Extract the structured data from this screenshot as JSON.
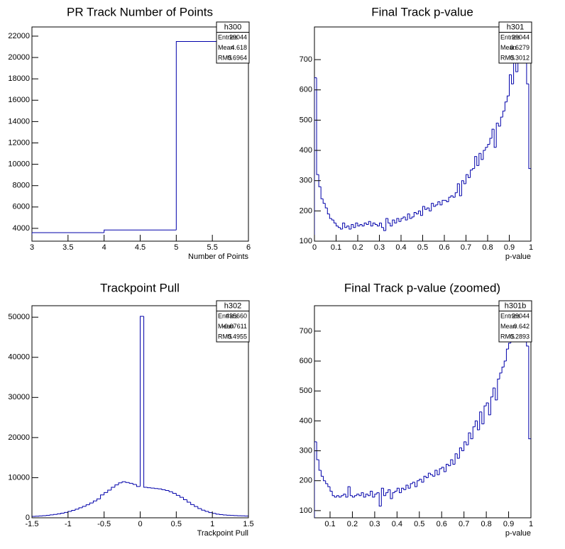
{
  "chart_data": [
    {
      "type": "histogram",
      "title": "PR Track Number of Points",
      "xlabel": "Number of Points",
      "color": "#0000aa",
      "bins": [
        3,
        4,
        5,
        6
      ],
      "values": [
        3600,
        3850,
        21500
      ],
      "xlim": [
        3,
        6
      ],
      "ylim": [
        2800,
        22860
      ],
      "xticks": [
        3,
        3.5,
        4,
        4.5,
        5,
        5.5,
        6
      ],
      "yticks": [
        4000,
        6000,
        8000,
        10000,
        12000,
        14000,
        16000,
        18000,
        20000,
        22000
      ],
      "stats": {
        "name": "h300",
        "rows": [
          {
            "label": "Entries",
            "value": 29044
          },
          {
            "label": "Mean",
            "value": 4.618
          },
          {
            "label": "RMS",
            "value": 0.6964
          }
        ]
      }
    },
    {
      "type": "histogram",
      "title": "Final Track p-value",
      "xlabel": "p-value",
      "color": "#0000aa",
      "bins": [
        0,
        0.01,
        0.02,
        0.03,
        0.04,
        0.05,
        0.06,
        0.07,
        0.08,
        0.09,
        0.1,
        0.11,
        0.12,
        0.13,
        0.14,
        0.15,
        0.16,
        0.17,
        0.18,
        0.19,
        0.2,
        0.21,
        0.22,
        0.23,
        0.24,
        0.25,
        0.26,
        0.27,
        0.28,
        0.29,
        0.3,
        0.31,
        0.32,
        0.33,
        0.34,
        0.35,
        0.36,
        0.37,
        0.38,
        0.39,
        0.4,
        0.41,
        0.42,
        0.43,
        0.44,
        0.45,
        0.46,
        0.47,
        0.48,
        0.49,
        0.5,
        0.51,
        0.52,
        0.53,
        0.54,
        0.55,
        0.56,
        0.57,
        0.58,
        0.59,
        0.6,
        0.61,
        0.62,
        0.63,
        0.64,
        0.65,
        0.66,
        0.67,
        0.68,
        0.69,
        0.7,
        0.71,
        0.72,
        0.73,
        0.74,
        0.75,
        0.76,
        0.77,
        0.78,
        0.79,
        0.8,
        0.81,
        0.82,
        0.83,
        0.84,
        0.85,
        0.86,
        0.87,
        0.88,
        0.89,
        0.9,
        0.91,
        0.92,
        0.93,
        0.94,
        0.95,
        0.96,
        0.97,
        0.98,
        0.99,
        1
      ],
      "values": [
        640,
        320,
        280,
        240,
        225,
        210,
        190,
        175,
        170,
        160,
        150,
        145,
        140,
        160,
        145,
        150,
        140,
        155,
        145,
        160,
        150,
        155,
        150,
        160,
        155,
        165,
        150,
        160,
        155,
        150,
        160,
        145,
        135,
        175,
        160,
        150,
        170,
        160,
        175,
        165,
        175,
        180,
        170,
        190,
        175,
        180,
        195,
        190,
        200,
        185,
        215,
        205,
        210,
        200,
        225,
        215,
        220,
        230,
        220,
        235,
        235,
        230,
        245,
        250,
        245,
        260,
        290,
        250,
        300,
        290,
        320,
        310,
        335,
        340,
        380,
        350,
        390,
        370,
        400,
        410,
        420,
        440,
        470,
        410,
        490,
        480,
        510,
        530,
        560,
        580,
        650,
        620,
        690,
        660,
        710,
        760,
        800,
        720,
        620,
        340
      ],
      "xlim": [
        0,
        1
      ],
      "ylim": [
        100,
        808
      ],
      "xticks": [
        0,
        0.1,
        0.2,
        0.3,
        0.4,
        0.5,
        0.6,
        0.7,
        0.8,
        0.9,
        1
      ],
      "yticks": [
        100,
        200,
        300,
        400,
        500,
        600,
        700
      ],
      "stats": {
        "name": "h301",
        "rows": [
          {
            "label": "Entries",
            "value": 29044
          },
          {
            "label": "Mean",
            "value": 0.6279
          },
          {
            "label": "RMS",
            "value": 0.3012
          }
        ]
      }
    },
    {
      "type": "histogram",
      "title": "Trackpoint Pull",
      "xlabel": "Trackpoint Pull",
      "color": "#0000aa",
      "bins": [
        -1.5,
        -1.45,
        -1.4,
        -1.35,
        -1.3,
        -1.25,
        -1.2,
        -1.15,
        -1.1,
        -1.05,
        -1,
        -0.95,
        -0.9,
        -0.85,
        -0.8,
        -0.75,
        -0.7,
        -0.65,
        -0.6,
        -0.55,
        -0.5,
        -0.45,
        -0.4,
        -0.35,
        -0.3,
        -0.25,
        -0.2,
        -0.15,
        -0.1,
        -0.05,
        0,
        0.05,
        0.1,
        0.15,
        0.2,
        0.25,
        0.3,
        0.35,
        0.4,
        0.45,
        0.5,
        0.55,
        0.6,
        0.65,
        0.7,
        0.75,
        0.8,
        0.85,
        0.9,
        0.95,
        1,
        1.05,
        1.1,
        1.15,
        1.2,
        1.25,
        1.3,
        1.35,
        1.4,
        1.45,
        1.5
      ],
      "values": [
        350,
        400,
        460,
        530,
        620,
        720,
        840,
        980,
        1150,
        1350,
        1600,
        1850,
        2150,
        2500,
        2850,
        3250,
        3700,
        4200,
        4700,
        5700,
        6300,
        6900,
        7600,
        8200,
        8700,
        9000,
        8800,
        8600,
        8300,
        7800,
        50200,
        7600,
        7500,
        7400,
        7300,
        7200,
        7000,
        6800,
        6500,
        6100,
        5600,
        5100,
        4500,
        3900,
        3300,
        2800,
        2300,
        1900,
        1600,
        1300,
        1100,
        900,
        800,
        700,
        650,
        600,
        550,
        500,
        480,
        450
      ],
      "xlim": [
        -1.5,
        1.5
      ],
      "ylim": [
        0,
        52860
      ],
      "xticks": [
        -1.5,
        -1,
        -0.5,
        0,
        0.5,
        1,
        1.5
      ],
      "yticks": [
        0,
        10000,
        20000,
        30000,
        40000,
        50000
      ],
      "stats": {
        "name": "h302",
        "rows": [
          {
            "label": "Entries",
            "value": 435660
          },
          {
            "label": "Mean",
            "value": -0.07611
          },
          {
            "label": "RMS",
            "value": 0.4955
          }
        ]
      }
    },
    {
      "type": "histogram",
      "title": "Final Track p-value (zoomed)",
      "xlabel": "p-value",
      "color": "#0000aa",
      "bins": [
        0.03,
        0.04,
        0.05,
        0.06,
        0.07,
        0.08,
        0.09,
        0.1,
        0.11,
        0.12,
        0.13,
        0.14,
        0.15,
        0.16,
        0.17,
        0.18,
        0.19,
        0.2,
        0.21,
        0.22,
        0.23,
        0.24,
        0.25,
        0.26,
        0.27,
        0.28,
        0.29,
        0.3,
        0.31,
        0.32,
        0.33,
        0.34,
        0.35,
        0.36,
        0.37,
        0.38,
        0.39,
        0.4,
        0.41,
        0.42,
        0.43,
        0.44,
        0.45,
        0.46,
        0.47,
        0.48,
        0.49,
        0.5,
        0.51,
        0.52,
        0.53,
        0.54,
        0.55,
        0.56,
        0.57,
        0.58,
        0.59,
        0.6,
        0.61,
        0.62,
        0.63,
        0.64,
        0.65,
        0.66,
        0.67,
        0.68,
        0.69,
        0.7,
        0.71,
        0.72,
        0.73,
        0.74,
        0.75,
        0.76,
        0.77,
        0.78,
        0.79,
        0.8,
        0.81,
        0.82,
        0.83,
        0.84,
        0.85,
        0.86,
        0.87,
        0.88,
        0.89,
        0.9,
        0.91,
        0.92,
        0.93,
        0.94,
        0.95,
        0.96,
        0.97,
        0.98,
        0.99,
        1
      ],
      "values": [
        330,
        270,
        235,
        215,
        200,
        190,
        180,
        165,
        150,
        145,
        150,
        145,
        150,
        155,
        145,
        180,
        150,
        145,
        150,
        155,
        150,
        160,
        145,
        155,
        150,
        165,
        145,
        155,
        160,
        115,
        175,
        150,
        160,
        170,
        140,
        160,
        165,
        175,
        160,
        175,
        170,
        185,
        175,
        190,
        195,
        180,
        200,
        205,
        195,
        215,
        210,
        225,
        220,
        215,
        235,
        220,
        240,
        245,
        230,
        255,
        250,
        270,
        255,
        290,
        275,
        310,
        300,
        330,
        320,
        360,
        340,
        380,
        400,
        370,
        430,
        390,
        450,
        460,
        420,
        480,
        510,
        470,
        540,
        560,
        580,
        600,
        640,
        660,
        700,
        680,
        740,
        770,
        780,
        720,
        790,
        650,
        340
      ],
      "xlim": [
        0.03,
        1
      ],
      "ylim": [
        76,
        785
      ],
      "xticks": [
        0.1,
        0.2,
        0.3,
        0.4,
        0.5,
        0.6,
        0.7,
        0.8,
        0.9,
        1
      ],
      "yticks": [
        100,
        200,
        300,
        400,
        500,
        600,
        700
      ],
      "stats": {
        "name": "h301b",
        "rows": [
          {
            "label": "Entries",
            "value": 29044
          },
          {
            "label": "Mean",
            "value": 0.642
          },
          {
            "label": "RMS",
            "value": 0.2893
          }
        ]
      }
    }
  ]
}
